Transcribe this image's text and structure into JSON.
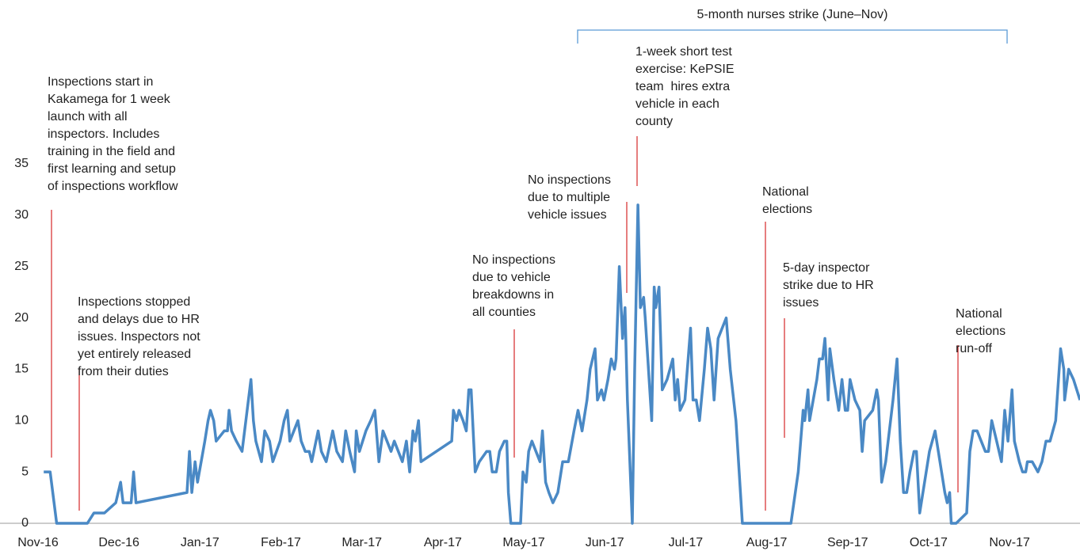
{
  "chart_data": {
    "type": "line",
    "title": "5-month nurses strike (June–Nov)",
    "xlim": [
      0,
      12.87
    ],
    "xticks": [
      {
        "value": 0,
        "label": "Nov-16"
      },
      {
        "value": 1,
        "label": "Dec-16"
      },
      {
        "value": 2,
        "label": "Jan-17"
      },
      {
        "value": 3,
        "label": "Feb-17"
      },
      {
        "value": 4,
        "label": "Mar-17"
      },
      {
        "value": 5,
        "label": "Apr-17"
      },
      {
        "value": 6,
        "label": "May-17"
      },
      {
        "value": 7,
        "label": "Jun-17"
      },
      {
        "value": 8,
        "label": "Jul-17"
      },
      {
        "value": 9,
        "label": "Aug-17"
      },
      {
        "value": 10,
        "label": "Sep-17"
      },
      {
        "value": 11,
        "label": "Oct-17"
      },
      {
        "value": 12,
        "label": "Nov-17"
      }
    ],
    "ylim": [
      0,
      36
    ],
    "yticks": [
      0,
      5,
      10,
      15,
      20,
      25,
      30,
      35
    ],
    "grid": false,
    "x": [
      0.07,
      0.15,
      0.23,
      0.61,
      0.69,
      0.82,
      0.96,
      1.02,
      1.05,
      1.15,
      1.18,
      1.21,
      1.84,
      1.87,
      1.9,
      1.94,
      1.97,
      2.06,
      2.1,
      2.13,
      2.17,
      2.2,
      2.3,
      2.34,
      2.36,
      2.39,
      2.45,
      2.52,
      2.63,
      2.66,
      2.69,
      2.76,
      2.8,
      2.86,
      2.9,
      2.99,
      3.04,
      3.08,
      3.11,
      3.21,
      3.25,
      3.3,
      3.35,
      3.38,
      3.46,
      3.5,
      3.56,
      3.64,
      3.69,
      3.76,
      3.8,
      3.85,
      3.91,
      3.93,
      3.97,
      4.05,
      4.11,
      4.16,
      4.21,
      4.26,
      4.31,
      4.36,
      4.4,
      4.45,
      4.5,
      4.55,
      4.59,
      4.63,
      4.66,
      4.7,
      4.73,
      5.11,
      5.13,
      5.17,
      5.2,
      5.25,
      5.29,
      5.32,
      5.35,
      5.4,
      5.45,
      5.54,
      5.58,
      5.61,
      5.66,
      5.7,
      5.76,
      5.79,
      5.81,
      5.84,
      5.96,
      5.99,
      6.03,
      6.06,
      6.1,
      6.15,
      6.2,
      6.23,
      6.27,
      6.31,
      6.36,
      6.42,
      6.48,
      6.55,
      6.62,
      6.67,
      6.72,
      6.78,
      6.82,
      6.88,
      6.91,
      6.96,
      6.99,
      7.04,
      7.08,
      7.12,
      7.14,
      7.18,
      7.22,
      7.25,
      7.28,
      7.34,
      7.37,
      7.41,
      7.44,
      7.48,
      7.5,
      7.58,
      7.61,
      7.63,
      7.67,
      7.71,
      7.77,
      7.84,
      7.87,
      7.9,
      7.93,
      7.99,
      8.06,
      8.09,
      8.13,
      8.17,
      8.23,
      8.27,
      8.31,
      8.35,
      8.4,
      8.45,
      8.5,
      8.55,
      8.62,
      8.7,
      9.3,
      9.39,
      9.45,
      9.47,
      9.51,
      9.53,
      9.62,
      9.65,
      9.69,
      9.72,
      9.76,
      9.78,
      9.83,
      9.89,
      9.93,
      9.97,
      10.0,
      10.03,
      10.09,
      10.15,
      10.18,
      10.21,
      10.31,
      10.36,
      10.38,
      10.42,
      10.47,
      10.56,
      10.61,
      10.65,
      10.69,
      10.73,
      10.77,
      10.82,
      10.85,
      10.89,
      10.97,
      11.01,
      11.08,
      11.12,
      11.16,
      11.2,
      11.23,
      11.26,
      11.28,
      11.34,
      11.47,
      11.51,
      11.55,
      11.6,
      11.65,
      11.7,
      11.74,
      11.78,
      11.84,
      11.9,
      11.94,
      11.98,
      12.03,
      12.06,
      12.12,
      12.16,
      12.2,
      12.22,
      12.28,
      12.35,
      12.4,
      12.45,
      12.5,
      12.57,
      12.63,
      12.67,
      12.68,
      12.73,
      12.79,
      12.87
    ],
    "series": [
      {
        "color": "#4a89c5",
        "values": [
          5,
          5,
          0,
          0,
          1,
          1,
          2,
          4,
          2,
          2,
          5,
          2,
          3,
          7,
          3,
          6,
          4,
          8,
          10,
          11,
          10,
          8,
          9,
          9,
          11,
          9,
          8,
          7,
          14,
          10,
          8,
          6,
          9,
          8,
          6,
          8,
          10,
          11,
          8,
          10,
          8,
          7,
          7,
          6,
          9,
          7,
          6,
          9,
          7,
          6,
          9,
          7,
          5,
          9,
          7,
          9,
          10,
          11,
          6,
          9,
          8,
          7,
          8,
          7,
          6,
          8,
          5,
          9,
          8,
          10,
          6,
          8,
          11,
          10,
          11,
          10,
          9,
          13,
          13,
          5,
          6,
          7,
          7,
          5,
          5,
          7,
          8,
          8,
          3,
          0,
          0,
          5,
          4,
          7,
          8,
          7,
          6,
          9,
          4,
          3,
          2,
          3,
          6,
          6,
          9,
          11,
          9,
          12,
          15,
          17,
          12,
          13,
          12,
          14,
          16,
          15,
          16,
          25,
          18,
          21,
          12,
          0,
          15,
          31,
          21,
          22,
          20,
          10,
          23,
          21,
          23,
          13,
          14,
          16,
          12,
          14,
          11,
          12,
          19,
          12,
          12,
          10,
          15,
          19,
          17,
          12,
          18,
          19,
          20,
          15,
          10,
          0,
          0,
          5,
          11,
          10,
          13,
          10,
          14,
          16,
          16,
          18,
          12,
          17,
          14,
          11,
          14,
          11,
          11,
          14,
          12,
          11,
          7,
          10,
          11,
          13,
          12,
          4,
          6,
          12,
          16,
          8,
          3,
          3,
          5,
          7,
          7,
          1,
          5,
          7,
          9,
          7,
          5,
          3,
          2,
          3,
          0,
          0,
          1,
          7,
          9,
          9,
          8,
          7,
          7,
          10,
          8,
          6,
          11,
          8,
          13,
          8,
          6,
          5,
          5,
          6,
          6,
          5,
          6,
          8,
          8,
          10,
          17,
          15,
          12,
          15,
          14,
          12
        ]
      }
    ],
    "annotations": [
      {
        "lines": [
          "Inspections start in",
          "Kakamega for 1 week",
          "launch with all",
          "inspectors. Includes",
          "training in the field and",
          "first learning and setup",
          "of inspections workflow"
        ]
      },
      {
        "lines": [
          "Inspections stopped",
          "and delays due to HR",
          "issues. Inspectors not",
          "yet entirely released",
          "from their duties"
        ]
      },
      {
        "lines": [
          "No inspections",
          "due to vehicle",
          "breakdowns in",
          "all counties"
        ]
      },
      {
        "lines": [
          "No inspections",
          "due to multiple",
          "vehicle issues"
        ]
      },
      {
        "lines": [
          "1-week short test",
          "exercise: KePSIE",
          "team  hires extra",
          "vehicle in each",
          "county"
        ]
      },
      {
        "lines": [
          "National",
          "elections"
        ]
      },
      {
        "lines": [
          "5-day inspector",
          "strike due to HR",
          "issues"
        ]
      },
      {
        "lines": [
          "National",
          "elections",
          "run-off"
        ]
      }
    ]
  }
}
